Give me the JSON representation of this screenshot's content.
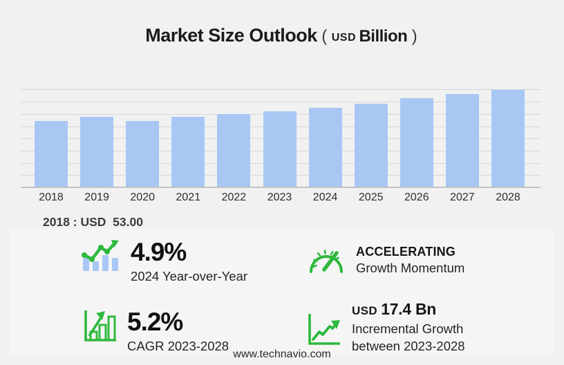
{
  "title": {
    "main": "Market Size Outlook",
    "open_paren": "(",
    "unit_prefix": "USD",
    "unit": "Billion",
    "close_paren": ")"
  },
  "chart_data": {
    "type": "bar",
    "title": "Market Size Outlook (USD Billion)",
    "categories": [
      "2018",
      "2019",
      "2020",
      "2021",
      "2022",
      "2023",
      "2024",
      "2025",
      "2026",
      "2027",
      "2028"
    ],
    "values": [
      53.0,
      56.4,
      53.1,
      56.6,
      58.4,
      60.9,
      63.9,
      67.1,
      71.6,
      74.8,
      78.3
    ],
    "unit": "USD Billion",
    "ylim": [
      0,
      79
    ],
    "y_gridline_count": 8,
    "grid": "horizontal",
    "y_tick_labels_visible": false,
    "legend": "none",
    "first_year_callout": "2018 : USD  53.00"
  },
  "annotation": {
    "first_year_value": "2018 : USD  53.00"
  },
  "stats": {
    "yoy": {
      "icon": "bar-chart-trend-icon",
      "value": "4.9%",
      "label": "2024 Year-over-Year"
    },
    "momentum": {
      "icon": "speedometer-icon",
      "title": "ACCELERATING",
      "label": "Growth Momentum"
    },
    "cagr": {
      "icon": "growth-bars-icon",
      "value": "5.2%",
      "label": "CAGR 2023-2028"
    },
    "incremental": {
      "icon": "line-chart-icon",
      "prefix": "USD",
      "value": "17.4 Bn",
      "label_line1": "Incremental Growth",
      "label_line2": "between 2023-2028"
    }
  },
  "footer": {
    "website": "www.technavio.com"
  },
  "colors": {
    "bar_fill": "#a8c7f3",
    "accent_green": "#2eb93e",
    "background": "#f1f1f2",
    "panel": "#f5f5f6",
    "gridline": "#d7d7d9",
    "axis_line": "#c3c3c6",
    "text_dark": "#1b1b1d"
  }
}
